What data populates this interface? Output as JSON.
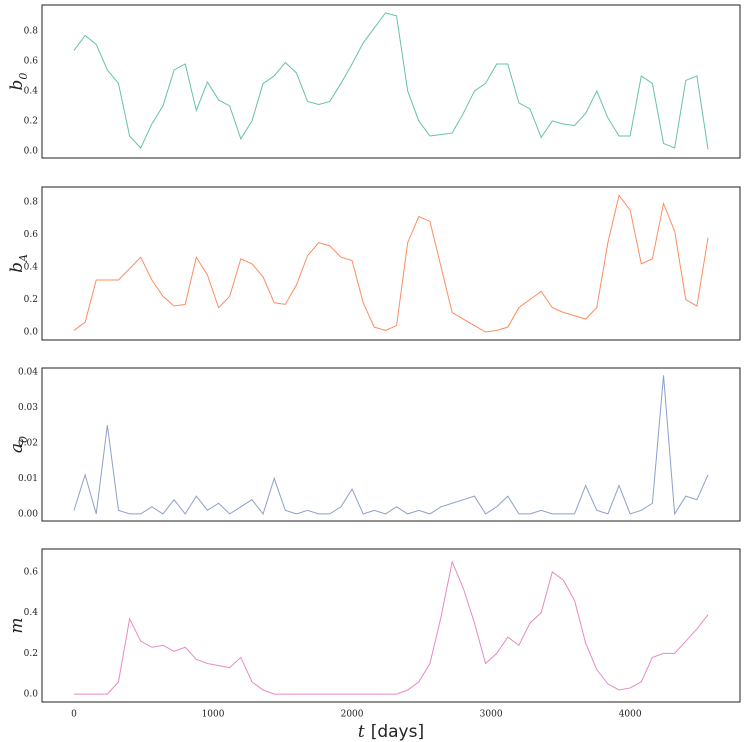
{
  "chart_data": [
    {
      "type": "line",
      "ylabel": [
        "b",
        "0"
      ],
      "color": "#66c2a5",
      "x": [
        0,
        80,
        160,
        240,
        320,
        400,
        480,
        560,
        640,
        720,
        800,
        880,
        960,
        1040,
        1120,
        1200,
        1280,
        1360,
        1440,
        1520,
        1600,
        1680,
        1760,
        1840,
        1920,
        2000,
        2080,
        2160,
        2240,
        2320,
        2400,
        2480,
        2560,
        2640,
        2720,
        2800,
        2880,
        2960,
        3040,
        3120,
        3200,
        3280,
        3360,
        3440,
        3520,
        3600,
        3680,
        3760,
        3840,
        3920,
        4000,
        4080,
        4160,
        4240,
        4320,
        4400,
        4480,
        4560
      ],
      "values": [
        0.67,
        0.77,
        0.71,
        0.54,
        0.45,
        0.1,
        0.02,
        0.18,
        0.3,
        0.54,
        0.58,
        0.27,
        0.46,
        0.34,
        0.3,
        0.08,
        0.2,
        0.45,
        0.5,
        0.59,
        0.52,
        0.33,
        0.31,
        0.33,
        0.45,
        0.58,
        0.72,
        0.82,
        0.92,
        0.9,
        0.4,
        0.2,
        0.1,
        0.11,
        0.12,
        0.25,
        0.4,
        0.45,
        0.58,
        0.58,
        0.32,
        0.28,
        0.09,
        0.2,
        0.18,
        0.17,
        0.25,
        0.4,
        0.22,
        0.1,
        0.1,
        0.5,
        0.45,
        0.05,
        0.02,
        0.47,
        0.5,
        0.01
      ],
      "xlim": [
        -230,
        4790
      ],
      "ylim": [
        -0.047,
        0.973
      ],
      "yticks": [
        {
          "value": 0,
          "label": "0.0"
        },
        0.2,
        0.4,
        0.6,
        0.8
      ]
    },
    {
      "type": "line",
      "ylabel": [
        "b",
        "A"
      ],
      "color": "#fc8d62",
      "x": [
        0,
        80,
        160,
        240,
        320,
        400,
        480,
        560,
        640,
        720,
        800,
        880,
        960,
        1040,
        1120,
        1200,
        1280,
        1360,
        1440,
        1520,
        1600,
        1680,
        1760,
        1840,
        1920,
        2000,
        2080,
        2160,
        2240,
        2320,
        2400,
        2480,
        2560,
        2640,
        2720,
        2800,
        2880,
        2960,
        3040,
        3120,
        3200,
        3280,
        3360,
        3440,
        3520,
        3600,
        3680,
        3760,
        3840,
        3920,
        4000,
        4080,
        4160,
        4240,
        4320,
        4400,
        4480,
        4560
      ],
      "values": [
        0.01,
        0.06,
        0.32,
        0.32,
        0.32,
        0.39,
        0.46,
        0.32,
        0.22,
        0.16,
        0.17,
        0.46,
        0.35,
        0.15,
        0.22,
        0.45,
        0.42,
        0.34,
        0.18,
        0.17,
        0.29,
        0.47,
        0.55,
        0.53,
        0.46,
        0.44,
        0.18,
        0.03,
        0.01,
        0.04,
        0.55,
        0.71,
        0.68,
        0.4,
        0.12,
        0.08,
        0.04,
        0.0,
        0.01,
        0.03,
        0.15,
        0.2,
        0.25,
        0.15,
        0.12,
        0.1,
        0.08,
        0.15,
        0.55,
        0.84,
        0.75,
        0.42,
        0.45,
        0.79,
        0.62,
        0.2,
        0.16,
        0.58
      ],
      "xlim": [
        -230,
        4790
      ],
      "ylim": [
        -0.049,
        0.892
      ],
      "yticks": [
        {
          "value": 0,
          "label": "0.0"
        },
        0.2,
        0.4,
        0.6,
        0.8
      ]
    },
    {
      "type": "line",
      "ylabel": [
        "a",
        "0"
      ],
      "color": "#8da0cb",
      "x": [
        0,
        80,
        160,
        240,
        320,
        400,
        480,
        560,
        640,
        720,
        800,
        880,
        960,
        1040,
        1120,
        1200,
        1280,
        1360,
        1440,
        1520,
        1600,
        1680,
        1760,
        1840,
        1920,
        2000,
        2080,
        2160,
        2240,
        2320,
        2400,
        2480,
        2560,
        2640,
        2720,
        2800,
        2880,
        2960,
        3040,
        3120,
        3200,
        3280,
        3360,
        3440,
        3520,
        3600,
        3680,
        3760,
        3840,
        3920,
        4000,
        4080,
        4160,
        4240,
        4320,
        4400,
        4480,
        4560
      ],
      "values": [
        0.001,
        0.011,
        0,
        0.025,
        0.001,
        0,
        0,
        0.002,
        0,
        0.004,
        0,
        0.005,
        0.001,
        0.003,
        0,
        0.002,
        0.004,
        0,
        0.01,
        0.001,
        0,
        0.001,
        0,
        0,
        0.002,
        0.007,
        0,
        0.001,
        0,
        0.002,
        0,
        0.001,
        0,
        0.002,
        0.003,
        0.004,
        0.005,
        0,
        0.002,
        0.005,
        0,
        0,
        0.001,
        0,
        0,
        0,
        0.008,
        0.001,
        0,
        0.008,
        0,
        0.001,
        0.003,
        0.039,
        0,
        0.005,
        0.004,
        0.011
      ],
      "xlim": [
        -230,
        4790
      ],
      "ylim": [
        -0.002,
        0.0411
      ],
      "yticks": [
        {
          "value": 0,
          "label": "0.00"
        },
        0.01,
        0.02,
        0.03,
        0.04
      ]
    },
    {
      "type": "line",
      "ylabel": [
        "m"
      ],
      "color": "#e78ac3",
      "x": [
        0,
        80,
        160,
        240,
        320,
        400,
        480,
        560,
        640,
        720,
        800,
        880,
        960,
        1040,
        1120,
        1200,
        1280,
        1360,
        1440,
        1520,
        1600,
        1680,
        1760,
        1840,
        1920,
        2000,
        2080,
        2160,
        2240,
        2320,
        2400,
        2480,
        2560,
        2640,
        2720,
        2800,
        2880,
        2960,
        3040,
        3120,
        3200,
        3280,
        3360,
        3440,
        3520,
        3600,
        3680,
        3760,
        3840,
        3920,
        4000,
        4080,
        4160,
        4240,
        4320,
        4400,
        4480,
        4560
      ],
      "values": [
        0,
        0,
        0,
        0,
        0.06,
        0.37,
        0.26,
        0.23,
        0.24,
        0.21,
        0.23,
        0.17,
        0.15,
        0.14,
        0.13,
        0.18,
        0.06,
        0.02,
        0,
        0,
        0,
        0,
        0,
        0,
        0,
        0,
        0,
        0,
        0,
        0,
        0.02,
        0.06,
        0.15,
        0.38,
        0.65,
        0.52,
        0.35,
        0.15,
        0.2,
        0.28,
        0.24,
        0.35,
        0.4,
        0.6,
        0.56,
        0.46,
        0.25,
        0.12,
        0.05,
        0.02,
        0.03,
        0.06,
        0.18,
        0.2,
        0.2,
        0.26,
        0.32,
        0.39
      ],
      "xlim": [
        -230,
        4790
      ],
      "ylim": [
        -0.039,
        0.713
      ],
      "yticks": [
        {
          "value": 0,
          "label": "0.0"
        },
        0.2,
        0.4,
        0.6
      ],
      "xticks": [
        0,
        1000,
        2000,
        3000,
        4000
      ],
      "xlabel": [
        "t",
        "[days]"
      ]
    }
  ]
}
